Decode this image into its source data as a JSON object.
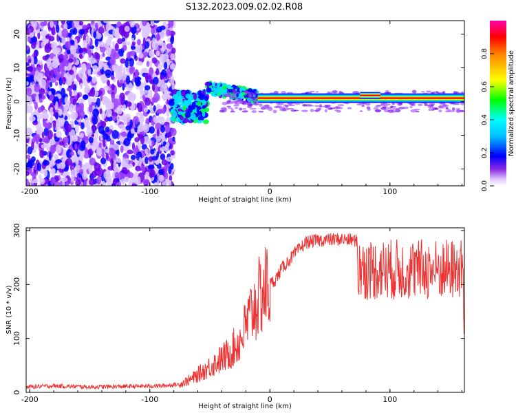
{
  "title": "S132.2023.009.02.02.R08",
  "colors": {
    "snr_line": "#ee3333",
    "spectrum_palette": [
      "#ffffff",
      "#e8d8ff",
      "#c79cff",
      "#7a00ff",
      "#0000ff",
      "#00ffff",
      "#00ff00",
      "#ffff00",
      "#ff0000",
      "#ff00aa"
    ]
  },
  "chart_data": [
    {
      "type": "heatmap",
      "name": "spectrogram",
      "xlabel": "Height of straight line (km)",
      "ylabel": "Frequency (Hz)",
      "xlim": [
        -203,
        162
      ],
      "ylim": [
        -25,
        24
      ],
      "xticks": [
        -200,
        -100,
        0,
        100
      ],
      "yticks": [
        -20,
        -10,
        0,
        10,
        20
      ],
      "colorbar": {
        "label": "Normalized spectral amplitude",
        "range": [
          0,
          1
        ],
        "ticks": [
          "0.0",
          "0.2",
          "0.4",
          "0.6",
          "0.8"
        ],
        "tick_values": [
          0,
          0.2,
          0.4,
          0.6,
          0.8
        ]
      },
      "regions": [
        {
          "desc": "noise",
          "x": [
            -203,
            -80
          ],
          "freq": [
            -25,
            24
          ],
          "amplitude": 0.15
        },
        {
          "desc": "onset cluster",
          "x": [
            -82,
            -52
          ],
          "freq": [
            -6,
            3
          ],
          "amplitude": 0.4
        },
        {
          "desc": "wandering band",
          "x": [
            -52,
            -10
          ],
          "freq": [
            -2,
            6
          ],
          "amplitude": 0.45
        },
        {
          "desc": "sidelobe",
          "x": [
            -40,
            162
          ],
          "freq": [
            -3,
            3
          ],
          "amplitude": 0.12
        },
        {
          "desc": "dominant band",
          "x": [
            -10,
            162
          ],
          "freq": [
            0,
            2
          ],
          "amplitude": 0.9
        }
      ]
    },
    {
      "type": "line",
      "name": "snr",
      "xlabel": "Height of straight line (km)",
      "ylabel": "SNR (10 * v/v)",
      "xlim": [
        -203,
        162
      ],
      "ylim": [
        0,
        305
      ],
      "xticks": [
        -200,
        -100,
        0,
        100
      ],
      "yticks": [
        0,
        100,
        200,
        300
      ],
      "series": [
        {
          "x": [
            -203,
            -180,
            -150,
            -120,
            -90,
            -75,
            -65,
            -55,
            -45,
            -35,
            -25,
            -15,
            -5,
            0,
            5,
            10,
            20,
            30,
            40,
            50,
            60,
            70,
            73,
            74,
            90,
            110,
            130,
            150,
            160,
            162
          ],
          "y": [
            10,
            12,
            10,
            11,
            12,
            15,
            25,
            40,
            55,
            70,
            95,
            150,
            190,
            200,
            210,
            230,
            255,
            278,
            282,
            283,
            284,
            282,
            280,
            215,
            220,
            222,
            218,
            220,
            215,
            130
          ]
        }
      ]
    }
  ]
}
